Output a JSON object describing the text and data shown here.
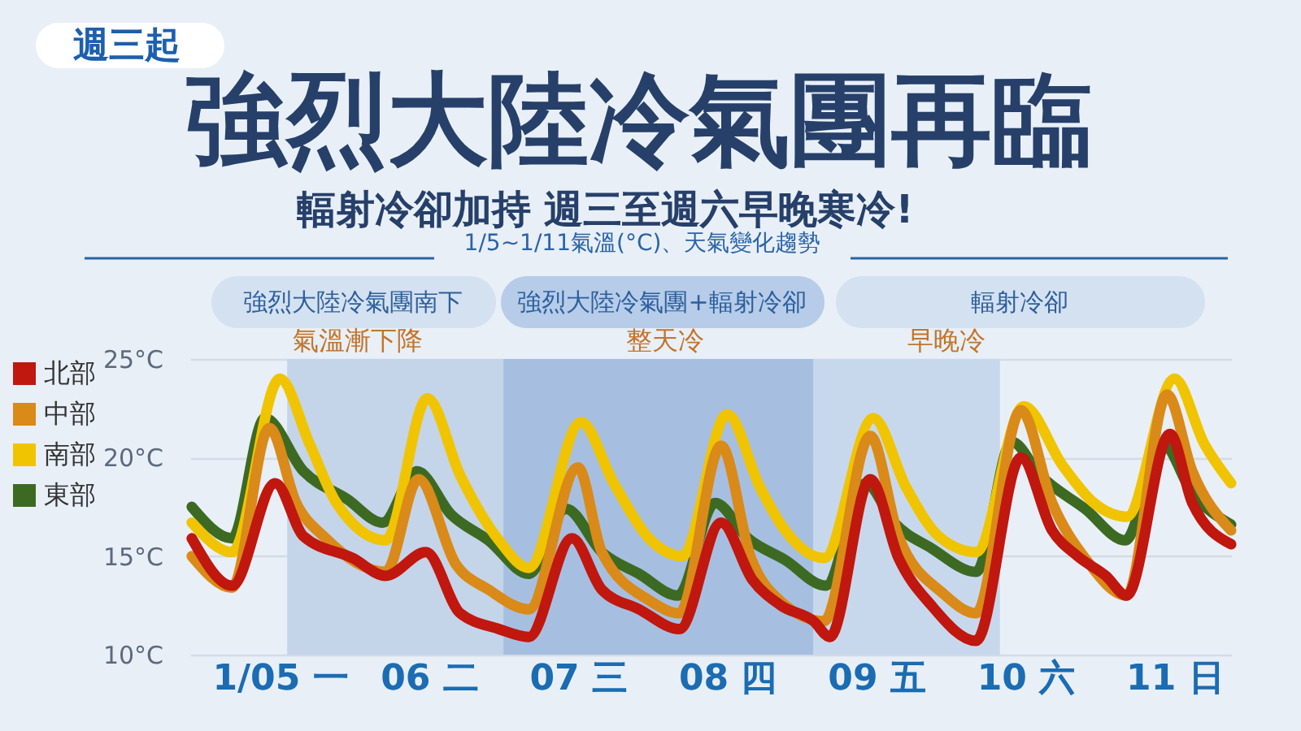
{
  "chart_data": {
    "type": "line",
    "title": "強烈大陸冷氣團再臨",
    "subtitle": "輻射冷卻加持 週三至週六早晚寒冷!",
    "annotations": [
      "週三起",
      "1/5~1/11氣溫(°C)、天氣變化趨勢",
      "強烈大陸冷氣團南下",
      "強烈大陸冷氣團+輻射冷卻",
      "輻射冷卻",
      "氣溫漸下降",
      "整天冷",
      "早晚冷"
    ],
    "series": [
      {
        "name": "北部",
        "color": "#c0170f",
        "x": [
          4.41,
          4.68,
          4.97,
          5.16,
          5.49,
          5.71,
          5.98,
          6.21,
          6.47,
          6.67,
          6.96,
          7.16,
          7.41,
          7.68,
          7.96,
          8.17,
          8.36,
          8.58,
          8.69,
          8.96,
          9.15,
          9.37,
          9.67,
          9.97,
          10.18,
          10.35,
          10.54,
          10.68,
          10.97,
          11.12,
          11.38
        ],
        "values": [
          15.9,
          13.5,
          18.7,
          16.0,
          14.9,
          14.0,
          15.2,
          12.1,
          11.3,
          10.9,
          15.9,
          13.3,
          12.3,
          11.3,
          16.7,
          13.8,
          12.5,
          11.7,
          10.9,
          18.9,
          14.9,
          12.5,
          10.7,
          20.0,
          16.3,
          15.0,
          14.0,
          13.0,
          21.2,
          17.7,
          15.6
        ]
      },
      {
        "name": "中部",
        "color": "#d98a18",
        "x": [
          4.41,
          4.68,
          4.93,
          5.11,
          5.31,
          5.71,
          5.93,
          6.18,
          6.4,
          6.67,
          7.0,
          7.16,
          7.49,
          7.68,
          7.96,
          8.16,
          8.36,
          8.65,
          8.96,
          9.15,
          9.45,
          9.67,
          9.97,
          10.18,
          10.4,
          10.68,
          10.95,
          11.12,
          11.38
        ],
        "values": [
          15.0,
          13.4,
          21.5,
          17.7,
          15.9,
          14.2,
          18.9,
          14.6,
          13.3,
          12.3,
          19.5,
          15.2,
          12.7,
          12.1,
          20.6,
          14.9,
          12.7,
          11.7,
          21.1,
          16.0,
          13.1,
          12.1,
          22.4,
          17.7,
          14.9,
          13.0,
          23.2,
          19.3,
          16.3
        ]
      },
      {
        "name": "南部",
        "color": "#f0c400",
        "x": [
          4.41,
          4.68,
          5.0,
          5.2,
          5.38,
          5.71,
          5.99,
          6.21,
          6.47,
          6.67,
          7.02,
          7.24,
          7.49,
          7.7,
          8.0,
          8.22,
          8.39,
          8.65,
          8.98,
          9.2,
          9.42,
          9.67,
          9.99,
          10.25,
          10.46,
          10.68,
          11.0,
          11.2,
          11.38
        ],
        "values": [
          16.7,
          15.2,
          24.0,
          20.7,
          17.7,
          15.8,
          23.0,
          19.1,
          15.8,
          14.4,
          21.8,
          18.7,
          15.8,
          15.0,
          22.2,
          18.5,
          16.3,
          14.9,
          22.0,
          18.5,
          16.0,
          15.2,
          22.6,
          19.6,
          17.7,
          17.0,
          24.0,
          20.7,
          18.7
        ]
      },
      {
        "name": "東部",
        "color": "#3d6a22",
        "x": [
          4.41,
          4.68,
          4.9,
          5.16,
          5.45,
          5.69,
          5.92,
          6.15,
          6.4,
          6.67,
          6.92,
          7.16,
          7.41,
          7.67,
          7.92,
          8.14,
          8.39,
          8.66,
          8.93,
          9.12,
          9.37,
          9.67,
          9.91,
          10.1,
          10.4,
          10.67,
          10.92,
          11.12,
          11.38
        ],
        "values": [
          17.5,
          15.9,
          22.0,
          19.3,
          17.9,
          16.7,
          19.3,
          17.1,
          15.8,
          14.1,
          17.4,
          15.2,
          14.1,
          13.0,
          17.7,
          15.9,
          14.8,
          13.5,
          18.7,
          16.7,
          15.4,
          14.2,
          20.8,
          19.1,
          17.4,
          15.8,
          20.7,
          18.2,
          16.6
        ]
      }
    ],
    "xlim": [
      4.4,
      11.38
    ],
    "xticks": [
      {
        "value": 5,
        "label": "1/05 一"
      },
      {
        "value": 6,
        "label": "06 二"
      },
      {
        "value": 7,
        "label": "07 三"
      },
      {
        "value": 8,
        "label": "08 四"
      },
      {
        "value": 9,
        "label": "09 五"
      },
      {
        "value": 10,
        "label": "10 六"
      },
      {
        "value": 11,
        "label": "11 日"
      }
    ],
    "ylim": [
      10,
      25
    ],
    "yticks": [
      {
        "value": 10,
        "label": "10°C"
      },
      {
        "value": 15,
        "label": "15°C"
      },
      {
        "value": 20,
        "label": "20°C"
      },
      {
        "value": 25,
        "label": "25°C"
      }
    ],
    "bands": [
      {
        "axis": "x",
        "from": 5.05,
        "to": 6.5,
        "color": "#c4d4e9"
      },
      {
        "axis": "x",
        "from": 6.5,
        "to": 8.58,
        "color": "#a6bfe0"
      },
      {
        "axis": "x",
        "from": 8.58,
        "to": 9.83,
        "color": "#c8d8ec"
      }
    ],
    "grid": "y",
    "legend": "left",
    "line_style": "solid"
  }
}
